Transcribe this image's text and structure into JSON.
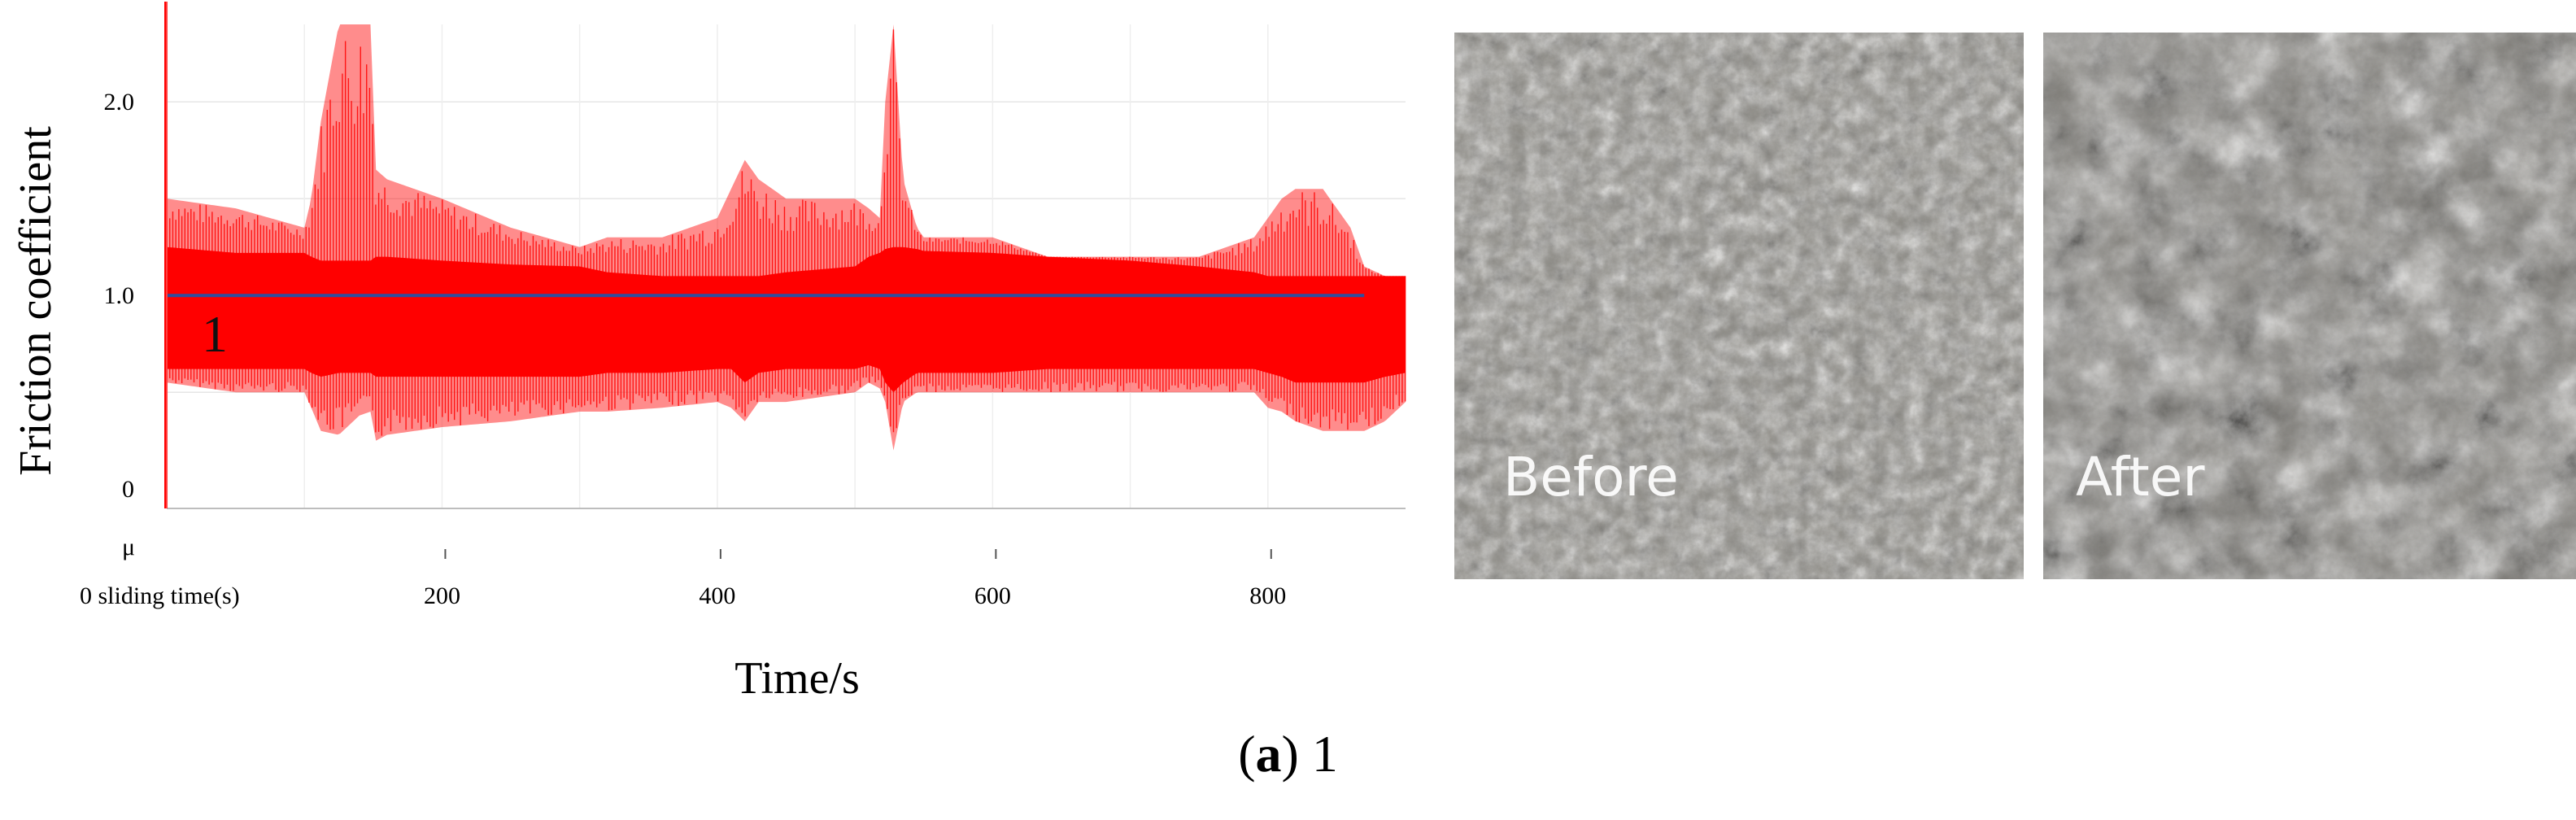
{
  "chart_data": {
    "type": "line",
    "ylabel": "Friction coefficient",
    "xlabel": "Time/s",
    "unit_label": "μ",
    "x_start_label": "0 sliding time(s)",
    "xlim": [
      0,
      900
    ],
    "ylim": [
      -0.1,
      2.4
    ],
    "x_ticks": [
      200,
      400,
      600,
      800
    ],
    "y_ticks": [
      0,
      1.0,
      2.0
    ],
    "y_tick_labels": [
      "0",
      "1.0",
      "2.0"
    ],
    "grid": true,
    "series": [
      {
        "color": "#ff0000",
        "x": [
          0,
          50,
          100,
          105,
          112,
          125,
          140,
          148,
          152,
          160,
          200,
          250,
          300,
          320,
          360,
          400,
          410,
          420,
          430,
          450,
          500,
          510,
          518,
          522,
          528,
          535,
          545,
          550,
          600,
          640,
          700,
          750,
          790,
          800,
          810,
          820,
          840,
          860,
          870,
          885,
          900
        ],
        "upper": [
          1.5,
          1.45,
          1.35,
          1.5,
          1.9,
          2.4,
          2.4,
          2.4,
          1.65,
          1.6,
          1.5,
          1.35,
          1.25,
          1.3,
          1.3,
          1.4,
          1.55,
          1.7,
          1.6,
          1.5,
          1.5,
          1.45,
          1.4,
          2.0,
          2.4,
          1.6,
          1.35,
          1.3,
          1.3,
          1.2,
          1.2,
          1.2,
          1.3,
          1.4,
          1.5,
          1.55,
          1.55,
          1.35,
          1.15,
          1.1,
          1.1
        ],
        "envelope_upper": [
          1.25,
          1.22,
          1.22,
          1.2,
          1.18,
          1.18,
          1.18,
          1.18,
          1.2,
          1.2,
          1.18,
          1.16,
          1.15,
          1.12,
          1.1,
          1.1,
          1.1,
          1.1,
          1.1,
          1.12,
          1.15,
          1.2,
          1.22,
          1.24,
          1.25,
          1.25,
          1.24,
          1.23,
          1.22,
          1.2,
          1.18,
          1.15,
          1.12,
          1.1,
          1.1,
          1.1,
          1.1,
          1.1,
          1.1,
          1.1,
          1.1
        ],
        "envelope_lower": [
          0.62,
          0.62,
          0.62,
          0.6,
          0.58,
          0.6,
          0.6,
          0.6,
          0.58,
          0.58,
          0.58,
          0.58,
          0.58,
          0.6,
          0.6,
          0.62,
          0.62,
          0.55,
          0.6,
          0.62,
          0.62,
          0.64,
          0.62,
          0.55,
          0.5,
          0.55,
          0.6,
          0.6,
          0.6,
          0.62,
          0.62,
          0.62,
          0.62,
          0.6,
          0.58,
          0.55,
          0.55,
          0.55,
          0.55,
          0.58,
          0.6
        ],
        "lower": [
          0.55,
          0.5,
          0.5,
          0.42,
          0.3,
          0.28,
          0.38,
          0.4,
          0.25,
          0.28,
          0.32,
          0.35,
          0.4,
          0.4,
          0.42,
          0.45,
          0.42,
          0.35,
          0.45,
          0.45,
          0.5,
          0.55,
          0.52,
          0.45,
          0.2,
          0.45,
          0.5,
          0.5,
          0.5,
          0.5,
          0.5,
          0.5,
          0.5,
          0.42,
          0.4,
          0.35,
          0.3,
          0.3,
          0.3,
          0.35,
          0.45
        ]
      }
    ],
    "mean_line": {
      "color": "#2f4fa0",
      "value": 1.0,
      "x": [
        0,
        870
      ]
    },
    "mean_label": "1"
  },
  "images": {
    "before": {
      "label": "Before"
    },
    "after": {
      "label": "After"
    }
  },
  "caption": {
    "letter": "a",
    "paren_open": "(",
    "paren_close": ")",
    "text": " 1"
  }
}
